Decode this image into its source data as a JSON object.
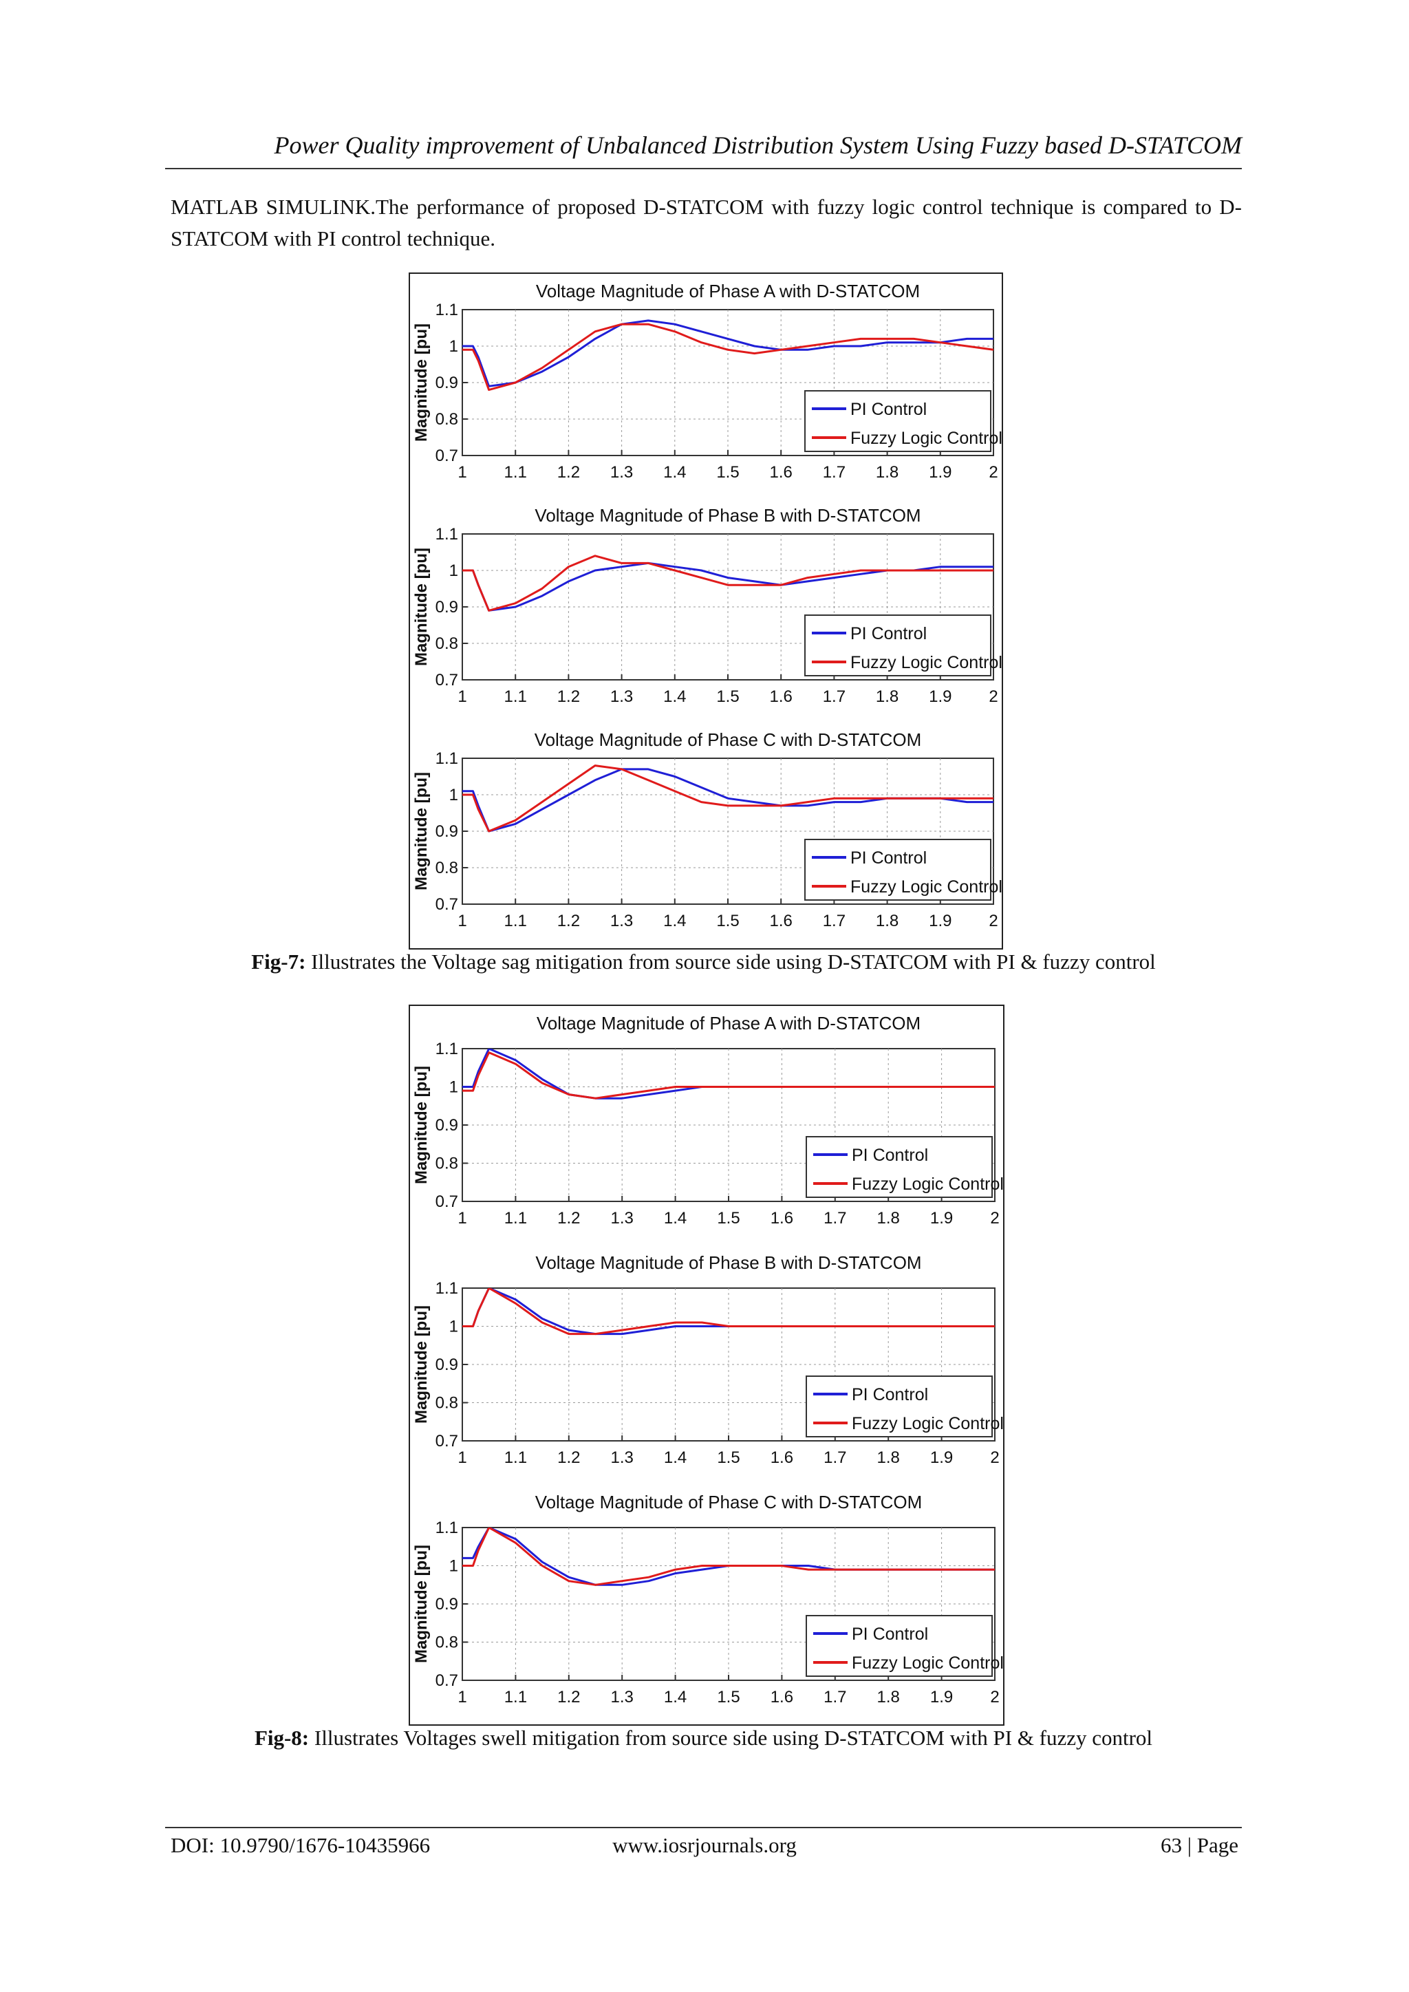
{
  "header": {
    "running_title": "Power Quality improvement of Unbalanced Distribution System Using Fuzzy based D-STATCOM"
  },
  "body": {
    "paragraph": "MATLAB SIMULINK.The performance of proposed D-STATCOM with fuzzy logic control technique is compared to D-STATCOM with PI control technique."
  },
  "figures": [
    {
      "id": "fig7",
      "caption_label": "Fig-7:",
      "caption_text": " Illustrates the Voltage sag mitigation from source side using D-STATCOM with PI & fuzzy control"
    },
    {
      "id": "fig8",
      "caption_label": "Fig-8:",
      "caption_text": " Illustrates Voltages swell mitigation from source side using D-STATCOM with PI & fuzzy control"
    }
  ],
  "footer": {
    "doi": "DOI: 10.9790/1676-10435966",
    "url": "www.iosrjournals.org",
    "page": "63 | Page"
  },
  "colors": {
    "pi": "#1f1fd6",
    "fuzzy": "#e01b1b"
  },
  "chart_data": [
    {
      "type": "line",
      "figure": "fig7",
      "title": "Voltage Magnitude of Phase A with D-STATCOM",
      "xlabel": "",
      "ylabel": "Magnitude [pu]",
      "xlim": [
        1,
        2
      ],
      "ylim": [
        0.7,
        1.1
      ],
      "xticks": [
        "1",
        "1.1",
        "1.2",
        "1.3",
        "1.4",
        "1.5",
        "1.6",
        "1.7",
        "1.8",
        "1.9",
        "2"
      ],
      "yticks": [
        "0.7",
        "0.8",
        "0.9",
        "1",
        "1.1"
      ],
      "grid": true,
      "legend": "bottom-right",
      "series": [
        {
          "name": "PI Control",
          "x": [
            0.95,
            1.02,
            1.03,
            1.05,
            1.1,
            1.15,
            1.2,
            1.25,
            1.3,
            1.35,
            1.4,
            1.45,
            1.5,
            1.55,
            1.6,
            1.65,
            1.7,
            1.75,
            1.8,
            1.85,
            1.9,
            1.95,
            2.0
          ],
          "y": [
            1.0,
            1.0,
            0.97,
            0.89,
            0.9,
            0.93,
            0.97,
            1.02,
            1.06,
            1.07,
            1.06,
            1.04,
            1.02,
            1.0,
            0.99,
            0.99,
            1.0,
            1.0,
            1.01,
            1.01,
            1.01,
            1.02,
            1.02
          ]
        },
        {
          "name": "Fuzzy Logic Control",
          "x": [
            0.95,
            1.02,
            1.03,
            1.05,
            1.1,
            1.15,
            1.2,
            1.25,
            1.3,
            1.35,
            1.4,
            1.45,
            1.5,
            1.55,
            1.6,
            1.65,
            1.7,
            1.75,
            1.8,
            1.85,
            1.9,
            1.95,
            2.0
          ],
          "y": [
            0.99,
            0.99,
            0.96,
            0.88,
            0.9,
            0.94,
            0.99,
            1.04,
            1.06,
            1.06,
            1.04,
            1.01,
            0.99,
            0.98,
            0.99,
            1.0,
            1.01,
            1.02,
            1.02,
            1.02,
            1.01,
            1.0,
            0.99
          ]
        }
      ]
    },
    {
      "type": "line",
      "figure": "fig7",
      "title": "Voltage Magnitude of Phase B with D-STATCOM",
      "xlabel": "",
      "ylabel": "Magnitude [pu]",
      "xlim": [
        1,
        2
      ],
      "ylim": [
        0.7,
        1.1
      ],
      "xticks": [
        "1",
        "1.1",
        "1.2",
        "1.3",
        "1.4",
        "1.5",
        "1.6",
        "1.7",
        "1.8",
        "1.9",
        "2"
      ],
      "yticks": [
        "0.7",
        "0.8",
        "0.9",
        "1",
        "1.1"
      ],
      "grid": true,
      "legend": "bottom-right",
      "series": [
        {
          "name": "PI Control",
          "x": [
            0.95,
            1.02,
            1.03,
            1.05,
            1.1,
            1.15,
            1.2,
            1.25,
            1.3,
            1.35,
            1.4,
            1.45,
            1.5,
            1.55,
            1.6,
            1.65,
            1.7,
            1.75,
            1.8,
            1.85,
            1.9,
            1.95,
            2.0
          ],
          "y": [
            1.0,
            1.0,
            0.96,
            0.89,
            0.9,
            0.93,
            0.97,
            1.0,
            1.01,
            1.02,
            1.01,
            1.0,
            0.98,
            0.97,
            0.96,
            0.97,
            0.98,
            0.99,
            1.0,
            1.0,
            1.01,
            1.01,
            1.01
          ]
        },
        {
          "name": "Fuzzy Logic Control",
          "x": [
            0.95,
            1.02,
            1.03,
            1.05,
            1.1,
            1.15,
            1.2,
            1.25,
            1.3,
            1.35,
            1.4,
            1.45,
            1.5,
            1.55,
            1.6,
            1.65,
            1.7,
            1.75,
            1.8,
            1.85,
            1.9,
            1.95,
            2.0
          ],
          "y": [
            1.0,
            1.0,
            0.96,
            0.89,
            0.91,
            0.95,
            1.01,
            1.04,
            1.02,
            1.02,
            1.0,
            0.98,
            0.96,
            0.96,
            0.96,
            0.98,
            0.99,
            1.0,
            1.0,
            1.0,
            1.0,
            1.0,
            1.0
          ]
        }
      ]
    },
    {
      "type": "line",
      "figure": "fig7",
      "title": "Voltage Magnitude of Phase C with D-STATCOM",
      "xlabel": "",
      "ylabel": "Magnitude [pu]",
      "xlim": [
        1,
        2
      ],
      "ylim": [
        0.7,
        1.1
      ],
      "xticks": [
        "1",
        "1.1",
        "1.2",
        "1.3",
        "1.4",
        "1.5",
        "1.6",
        "1.7",
        "1.8",
        "1.9",
        "2"
      ],
      "yticks": [
        "0.7",
        "0.8",
        "0.9",
        "1",
        "1.1"
      ],
      "grid": true,
      "legend": "bottom-right",
      "series": [
        {
          "name": "PI Control",
          "x": [
            0.95,
            1.02,
            1.03,
            1.05,
            1.1,
            1.15,
            1.2,
            1.25,
            1.3,
            1.35,
            1.4,
            1.45,
            1.5,
            1.55,
            1.6,
            1.65,
            1.7,
            1.75,
            1.8,
            1.85,
            1.9,
            1.95,
            2.0
          ],
          "y": [
            1.01,
            1.01,
            0.97,
            0.9,
            0.92,
            0.96,
            1.0,
            1.04,
            1.07,
            1.07,
            1.05,
            1.02,
            0.99,
            0.98,
            0.97,
            0.97,
            0.98,
            0.98,
            0.99,
            0.99,
            0.99,
            0.98,
            0.98
          ]
        },
        {
          "name": "Fuzzy Logic Control",
          "x": [
            0.95,
            1.02,
            1.03,
            1.05,
            1.1,
            1.15,
            1.2,
            1.25,
            1.3,
            1.35,
            1.4,
            1.45,
            1.5,
            1.55,
            1.6,
            1.65,
            1.7,
            1.75,
            1.8,
            1.85,
            1.9,
            1.95,
            2.0
          ],
          "y": [
            1.0,
            1.0,
            0.96,
            0.9,
            0.93,
            0.98,
            1.03,
            1.08,
            1.07,
            1.04,
            1.01,
            0.98,
            0.97,
            0.97,
            0.97,
            0.98,
            0.99,
            0.99,
            0.99,
            0.99,
            0.99,
            0.99,
            0.99
          ]
        }
      ]
    },
    {
      "type": "line",
      "figure": "fig8",
      "title": "Voltage Magnitude of Phase A with D-STATCOM",
      "xlabel": "",
      "ylabel": "Magnitude [pu]",
      "xlim": [
        1,
        2
      ],
      "ylim": [
        0.7,
        1.1
      ],
      "xticks": [
        "1",
        "1.1",
        "1.2",
        "1.3",
        "1.4",
        "1.5",
        "1.6",
        "1.7",
        "1.8",
        "1.9",
        "2"
      ],
      "yticks": [
        "0.7",
        "0.8",
        "0.9",
        "1",
        "1.1"
      ],
      "grid": true,
      "legend": "bottom-right",
      "series": [
        {
          "name": "PI Control",
          "x": [
            0.95,
            1.02,
            1.03,
            1.05,
            1.1,
            1.15,
            1.2,
            1.25,
            1.3,
            1.35,
            1.4,
            1.45,
            1.5,
            1.55,
            1.6,
            1.65,
            1.7,
            1.75,
            1.8,
            1.85,
            1.9,
            1.95,
            2.0
          ],
          "y": [
            1.0,
            1.0,
            1.04,
            1.1,
            1.07,
            1.02,
            0.98,
            0.97,
            0.97,
            0.98,
            0.99,
            1.0,
            1.0,
            1.0,
            1.0,
            1.0,
            1.0,
            1.0,
            1.0,
            1.0,
            1.0,
            1.0,
            1.0
          ]
        },
        {
          "name": "Fuzzy Logic Control",
          "x": [
            0.95,
            1.02,
            1.03,
            1.05,
            1.1,
            1.15,
            1.2,
            1.25,
            1.3,
            1.35,
            1.4,
            1.45,
            1.5,
            1.55,
            1.6,
            1.65,
            1.7,
            1.75,
            1.8,
            1.85,
            1.9,
            1.95,
            2.0
          ],
          "y": [
            0.99,
            0.99,
            1.03,
            1.09,
            1.06,
            1.01,
            0.98,
            0.97,
            0.98,
            0.99,
            1.0,
            1.0,
            1.0,
            1.0,
            1.0,
            1.0,
            1.0,
            1.0,
            1.0,
            1.0,
            1.0,
            1.0,
            1.0
          ]
        }
      ]
    },
    {
      "type": "line",
      "figure": "fig8",
      "title": "Voltage Magnitude of Phase B with D-STATCOM",
      "xlabel": "",
      "ylabel": "Magnitude [pu]",
      "xlim": [
        1,
        2
      ],
      "ylim": [
        0.7,
        1.1
      ],
      "xticks": [
        "1",
        "1.1",
        "1.2",
        "1.3",
        "1.4",
        "1.5",
        "1.6",
        "1.7",
        "1.8",
        "1.9",
        "2"
      ],
      "yticks": [
        "0.7",
        "0.8",
        "0.9",
        "1",
        "1.1"
      ],
      "grid": true,
      "legend": "bottom-right",
      "series": [
        {
          "name": "PI Control",
          "x": [
            0.95,
            1.02,
            1.03,
            1.05,
            1.1,
            1.15,
            1.2,
            1.25,
            1.3,
            1.35,
            1.4,
            1.45,
            1.5,
            1.55,
            1.6,
            1.65,
            1.7,
            1.75,
            1.8,
            1.85,
            1.9,
            1.95,
            2.0
          ],
          "y": [
            1.0,
            1.0,
            1.04,
            1.1,
            1.07,
            1.02,
            0.99,
            0.98,
            0.98,
            0.99,
            1.0,
            1.0,
            1.0,
            1.0,
            1.0,
            1.0,
            1.0,
            1.0,
            1.0,
            1.0,
            1.0,
            1.0,
            1.0
          ]
        },
        {
          "name": "Fuzzy Logic Control",
          "x": [
            0.95,
            1.02,
            1.03,
            1.05,
            1.1,
            1.15,
            1.2,
            1.25,
            1.3,
            1.35,
            1.4,
            1.45,
            1.5,
            1.55,
            1.6,
            1.65,
            1.7,
            1.75,
            1.8,
            1.85,
            1.9,
            1.95,
            2.0
          ],
          "y": [
            1.0,
            1.0,
            1.04,
            1.1,
            1.06,
            1.01,
            0.98,
            0.98,
            0.99,
            1.0,
            1.01,
            1.01,
            1.0,
            1.0,
            1.0,
            1.0,
            1.0,
            1.0,
            1.0,
            1.0,
            1.0,
            1.0,
            1.0
          ]
        }
      ]
    },
    {
      "type": "line",
      "figure": "fig8",
      "title": "Voltage Magnitude of Phase C with D-STATCOM",
      "xlabel": "",
      "ylabel": "Magnitude [pu]",
      "xlim": [
        1,
        2
      ],
      "ylim": [
        0.7,
        1.1
      ],
      "xticks": [
        "1",
        "1.1",
        "1.2",
        "1.3",
        "1.4",
        "1.5",
        "1.6",
        "1.7",
        "1.8",
        "1.9",
        "2"
      ],
      "yticks": [
        "0.7",
        "0.8",
        "0.9",
        "1",
        "1.1"
      ],
      "grid": true,
      "legend": "bottom-right",
      "series": [
        {
          "name": "PI Control",
          "x": [
            0.95,
            1.02,
            1.03,
            1.05,
            1.1,
            1.15,
            1.2,
            1.25,
            1.3,
            1.35,
            1.4,
            1.45,
            1.5,
            1.55,
            1.6,
            1.65,
            1.7,
            1.75,
            1.8,
            1.85,
            1.9,
            1.95,
            2.0
          ],
          "y": [
            1.02,
            1.02,
            1.05,
            1.1,
            1.07,
            1.01,
            0.97,
            0.95,
            0.95,
            0.96,
            0.98,
            0.99,
            1.0,
            1.0,
            1.0,
            1.0,
            0.99,
            0.99,
            0.99,
            0.99,
            0.99,
            0.99,
            0.99
          ]
        },
        {
          "name": "Fuzzy Logic Control",
          "x": [
            0.95,
            1.02,
            1.03,
            1.05,
            1.1,
            1.15,
            1.2,
            1.25,
            1.3,
            1.35,
            1.4,
            1.45,
            1.5,
            1.55,
            1.6,
            1.65,
            1.7,
            1.75,
            1.8,
            1.85,
            1.9,
            1.95,
            2.0
          ],
          "y": [
            1.0,
            1.0,
            1.04,
            1.1,
            1.06,
            1.0,
            0.96,
            0.95,
            0.96,
            0.97,
            0.99,
            1.0,
            1.0,
            1.0,
            1.0,
            0.99,
            0.99,
            0.99,
            0.99,
            0.99,
            0.99,
            0.99,
            0.99
          ]
        }
      ]
    }
  ]
}
